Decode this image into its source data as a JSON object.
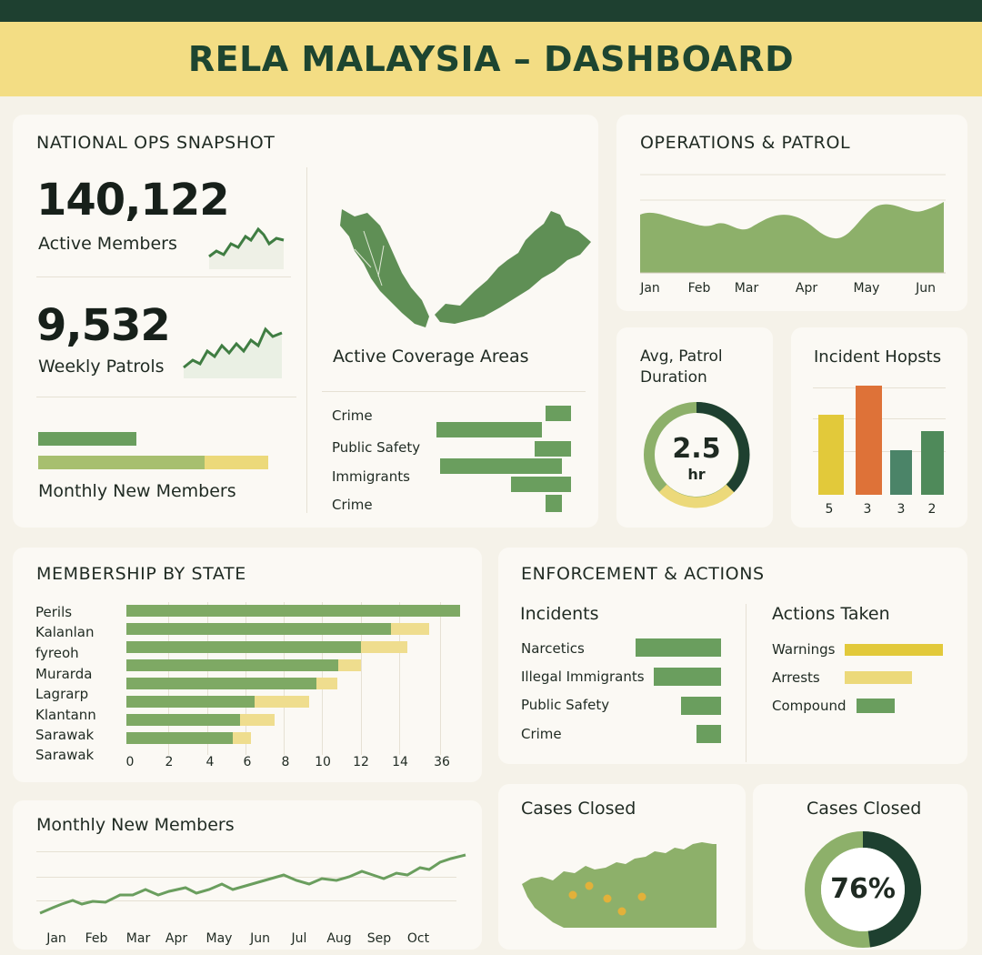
{
  "header": {
    "title": "RELA MALAYSIA – DASHBOARD"
  },
  "colors": {
    "dark_green": "#1e4030",
    "green": "#6a9e5e",
    "light_green": "#8db06a",
    "yellow": "#e2c93a",
    "pale_yellow": "#ecd97a",
    "orange": "#de7238",
    "teal": "#4b8468",
    "header_yellow": "#f3dd84"
  },
  "snapshot": {
    "title": "NATIONAL OPS SNAPSHOT",
    "active_members": {
      "value": "140,122",
      "label": "Active Members"
    },
    "weekly_patrols": {
      "value": "9,532",
      "label": "Weekly Patrols"
    },
    "monthly_new_members_label": "Monthly New Members",
    "map_label": "Active Coverage Areas",
    "coverage": [
      {
        "label": "Crime",
        "value": 2
      },
      {
        "label": "Public Safety",
        "value": 3
      },
      {
        "label": "Immigrants",
        "value": 4
      },
      {
        "label": "Crime",
        "value": 1
      }
    ]
  },
  "operations": {
    "title": "OPERATIONS & PATROL",
    "months": [
      "Jan",
      "Feb",
      "Mar",
      "Apr",
      "May",
      "Jun"
    ]
  },
  "patrol_duration": {
    "title_line1": "Avg, Patrol",
    "title_line2": "Duration",
    "value": "2.5",
    "unit": "hr"
  },
  "incident_hotspots": {
    "title": "Incident Hopsts",
    "labels": [
      "5",
      "3",
      "3",
      "2"
    ]
  },
  "membership_by_state": {
    "title": "MEMBERSHIP BY STATE",
    "states": [
      "Perils",
      "Kalanlan",
      "fyreoh",
      "Murarda",
      "Lagrarp",
      "Klantann",
      "Sarawak",
      "Sarawak"
    ],
    "ticks": [
      "0",
      "2",
      "4",
      "6",
      "8",
      "10",
      "12",
      "14",
      "36"
    ]
  },
  "enforcement": {
    "title": "ENFORCEMENT & ACTIONS",
    "incidents_title": "Incidents",
    "incidents": [
      {
        "label": "Narcetics",
        "value": 94
      },
      {
        "label": "Illegal Immigrants",
        "value": 74
      },
      {
        "label": "Public Safety",
        "value": 44
      },
      {
        "label": "Crime",
        "value": 27
      }
    ],
    "actions_title": "Actions Taken",
    "actions": [
      {
        "label": "Warnings",
        "value": 108,
        "color": "#e2c93a"
      },
      {
        "label": "Arrests",
        "value": 74,
        "color": "#ecd97a"
      },
      {
        "label": "Compound",
        "value": 42,
        "color": "#6a9e5e"
      }
    ]
  },
  "monthly_new_members": {
    "title": "Monthly New Members",
    "months": [
      "Jan",
      "Feb",
      "Mar",
      "Apr",
      "May",
      "Jun",
      "Jul",
      "Aug",
      "Sep",
      "Oct"
    ]
  },
  "cases_closed_map": {
    "title": "Cases Closed"
  },
  "cases_closed": {
    "title": "Cases Closed",
    "value": "76%",
    "fraction": 0.76
  }
}
